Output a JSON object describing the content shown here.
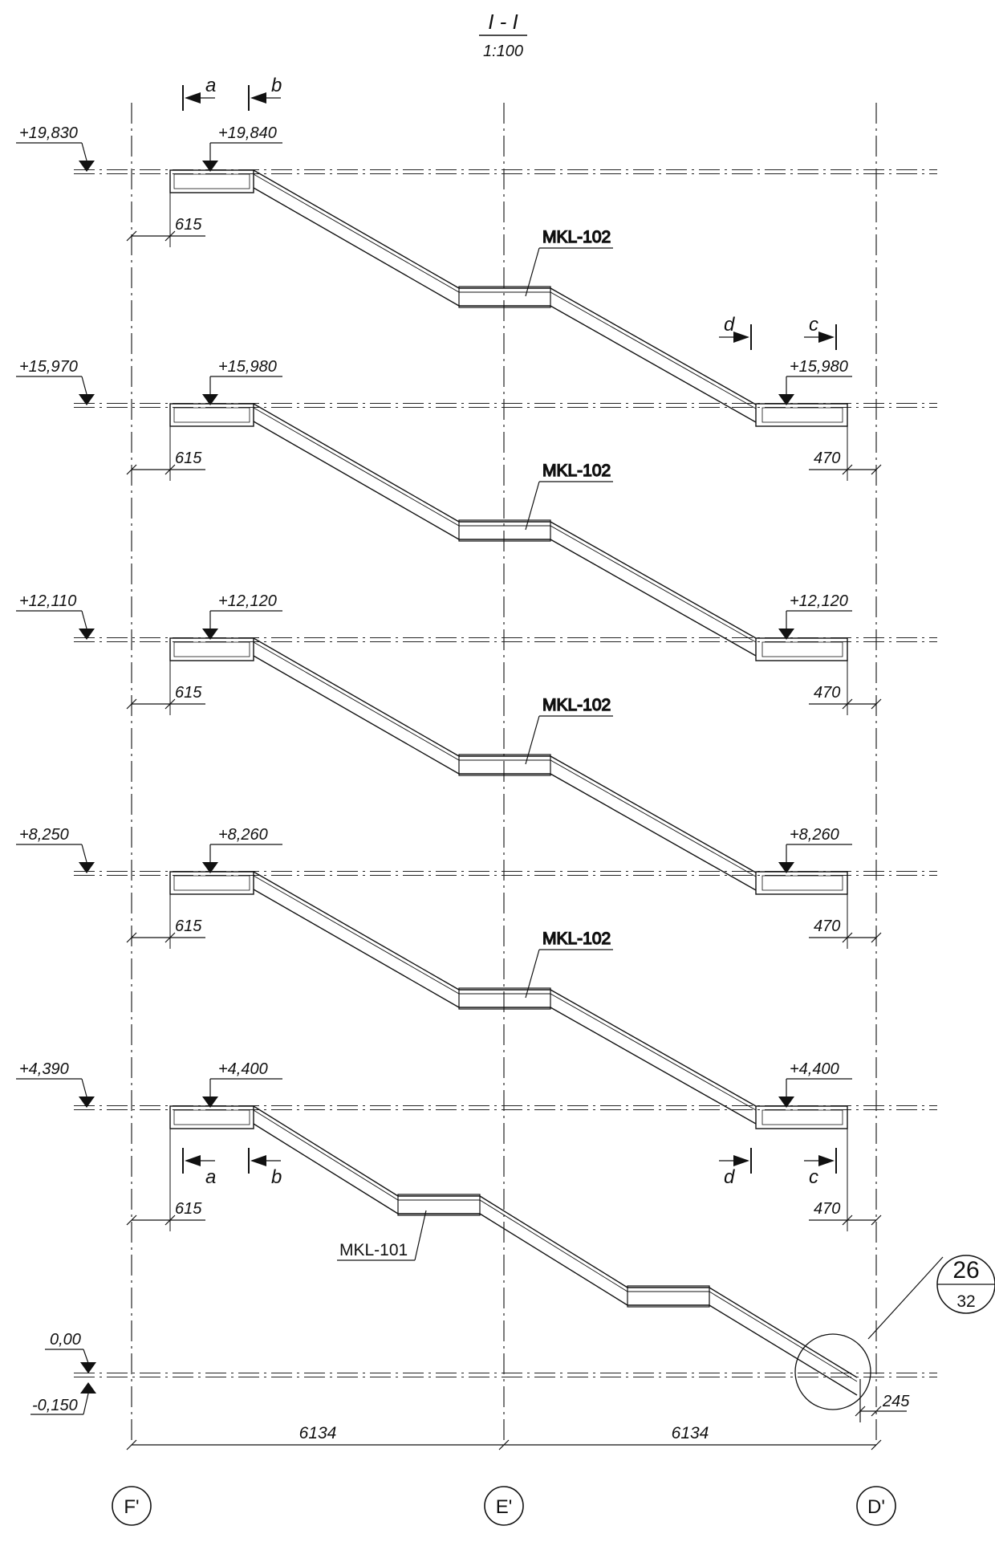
{
  "title": {
    "section": "I - I",
    "scale": "1:100"
  },
  "grid_axes": [
    {
      "id": "F",
      "label": "F'"
    },
    {
      "id": "E",
      "label": "E'"
    },
    {
      "id": "D",
      "label": "D'"
    }
  ],
  "levels": [
    {
      "id": "l0",
      "outer_mark": "+19,830",
      "inner_mark": "+19,840",
      "right_mark": "",
      "left_dim": "615",
      "right_dim": "",
      "member": "MKL-102"
    },
    {
      "id": "l1",
      "outer_mark": "+15,970",
      "inner_mark": "+15,980",
      "right_mark": "+15,980",
      "left_dim": "615",
      "right_dim": "470",
      "member": "MKL-102"
    },
    {
      "id": "l2",
      "outer_mark": "+12,110",
      "inner_mark": "+12,120",
      "right_mark": "+12,120",
      "left_dim": "615",
      "right_dim": "470",
      "member": "MKL-102"
    },
    {
      "id": "l3",
      "outer_mark": "+8,250",
      "inner_mark": "+8,260",
      "right_mark": "+8,260",
      "left_dim": "615",
      "right_dim": "470",
      "member": "MKL-102"
    },
    {
      "id": "l4",
      "outer_mark": "+4,390",
      "inner_mark": "+4,400",
      "right_mark": "+4,400",
      "left_dim": "615",
      "right_dim": "470",
      "member": ""
    }
  ],
  "ground": {
    "top_mark": "0,00",
    "bottom_mark": "-0,150",
    "member": "MKL-101"
  },
  "section_cuts": {
    "top": [
      "a",
      "b",
      "d",
      "c"
    ],
    "bottom": [
      "a",
      "b",
      "d",
      "c"
    ]
  },
  "detail_callout": {
    "number": "26",
    "sheet": "32"
  },
  "dims": {
    "bottom_left": "6134",
    "bottom_right": "6134",
    "footing": "245"
  }
}
